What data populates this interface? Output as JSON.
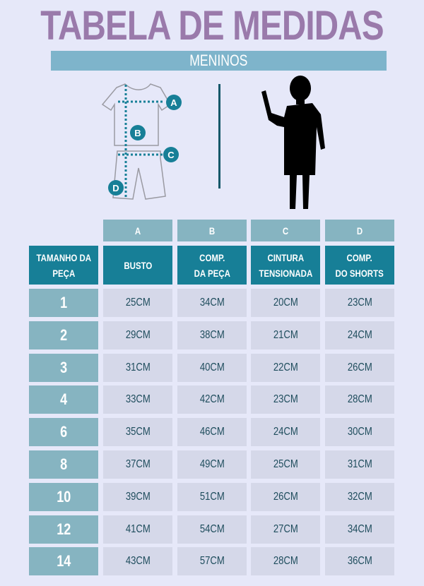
{
  "title": "TABELA DE MEDIDAS",
  "subtitle": "MENINOS",
  "illustration": {
    "markers": [
      "A",
      "B",
      "C",
      "D"
    ],
    "icons": [
      "tshirt-icon",
      "shorts-icon",
      "boy-silhouette-icon"
    ]
  },
  "colors": {
    "title": "#9a7aab",
    "banner": "#7eb4cb",
    "header": "#177f97",
    "letter_row": "#86b4c1",
    "cell": "#d5d8e9",
    "text": "#1f4d5d"
  },
  "table": {
    "letters": [
      "A",
      "B",
      "C",
      "D"
    ],
    "headers": [
      "TAMANHO DA\nPEÇA",
      "BUSTO",
      "COMP.\nDA PEÇA",
      "CINTURA\nTENSIONADA",
      "COMP.\nDO SHORTS"
    ],
    "rows": [
      [
        "1",
        "25CM",
        "34CM",
        "20CM",
        "23CM"
      ],
      [
        "2",
        "29CM",
        "38CM",
        "21CM",
        "24CM"
      ],
      [
        "3",
        "31CM",
        "40CM",
        "22CM",
        "26CM"
      ],
      [
        "4",
        "33CM",
        "42CM",
        "23CM",
        "28CM"
      ],
      [
        "6",
        "35CM",
        "46CM",
        "24CM",
        "30CM"
      ],
      [
        "8",
        "37CM",
        "49CM",
        "25CM",
        "31CM"
      ],
      [
        "10",
        "39CM",
        "51CM",
        "26CM",
        "32CM"
      ],
      [
        "12",
        "41CM",
        "54CM",
        "27CM",
        "34CM"
      ],
      [
        "14",
        "43CM",
        "57CM",
        "28CM",
        "36CM"
      ]
    ]
  }
}
